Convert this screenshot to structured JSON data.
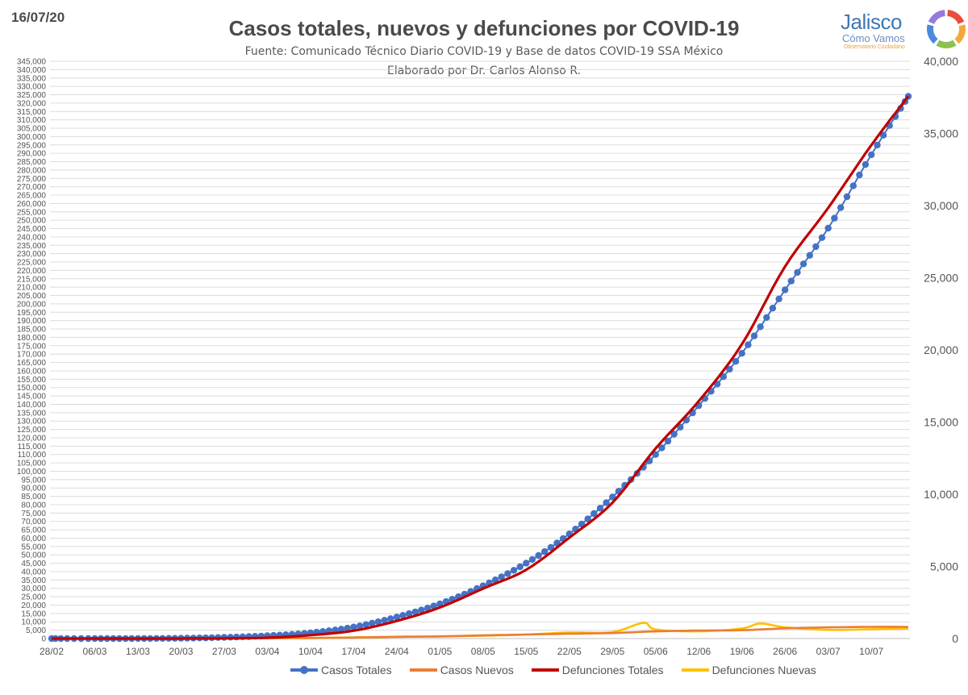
{
  "header": {
    "date": "16/07/20",
    "title": "Casos totales, nuevos y defunciones por COVID-19",
    "source": "Fuente: Comunicado Técnico Diario COVID-19 y Base de datos COVID-19 SSA México",
    "author": "Elaborado por Dr. Carlos Alonso R."
  },
  "logo": {
    "name": "Jalisco",
    "subtitle": "Cómo Vamos",
    "tagline": "Observatorio Ciudadano",
    "colors": [
      "#e94e3c",
      "#f2a93b",
      "#8cc152",
      "#4a89dc",
      "#967adc"
    ]
  },
  "chart_data": {
    "type": "line",
    "title": "Casos totales, nuevos y defunciones por COVID-19",
    "x_tick_labels": [
      "28/02",
      "06/03",
      "13/03",
      "20/03",
      "27/03",
      "03/04",
      "10/04",
      "17/04",
      "24/04",
      "01/05",
      "08/05",
      "15/05",
      "22/05",
      "29/05",
      "05/06",
      "12/06",
      "19/06",
      "26/06",
      "03/07",
      "10/07"
    ],
    "x_range": [
      "28/02",
      "16/07"
    ],
    "y_left": {
      "min": 0,
      "max": 345000,
      "step": 5000
    },
    "y_right": {
      "min": 0,
      "max": 40000,
      "step": 5000
    },
    "grid": true,
    "legend_position": "bottom",
    "series": [
      {
        "name": "Casos Totales",
        "axis": "left",
        "color": "#4472c4",
        "marker": "circle",
        "points": [
          [
            "28/02",
            1
          ],
          [
            "06/03",
            5
          ],
          [
            "13/03",
            26
          ],
          [
            "20/03",
            203
          ],
          [
            "27/03",
            717
          ],
          [
            "03/04",
            1688
          ],
          [
            "10/04",
            3441
          ],
          [
            "17/04",
            6875
          ],
          [
            "24/04",
            12872
          ],
          [
            "01/05",
            20739
          ],
          [
            "08/05",
            31522
          ],
          [
            "15/05",
            45032
          ],
          [
            "22/05",
            62527
          ],
          [
            "29/05",
            84627
          ],
          [
            "05/06",
            110026
          ],
          [
            "12/06",
            139196
          ],
          [
            "19/06",
            170485
          ],
          [
            "26/06",
            208392
          ],
          [
            "03/07",
            245251
          ],
          [
            "10/07",
            289174
          ],
          [
            "16/07",
            324041
          ]
        ]
      },
      {
        "name": "Casos Nuevos",
        "axis": "left",
        "color": "#ed7d31",
        "points": [
          [
            "28/02",
            0
          ],
          [
            "06/03",
            1
          ],
          [
            "13/03",
            10
          ],
          [
            "20/03",
            40
          ],
          [
            "27/03",
            130
          ],
          [
            "03/04",
            180
          ],
          [
            "10/04",
            300
          ],
          [
            "17/04",
            600
          ],
          [
            "24/04",
            1000
          ],
          [
            "01/05",
            1300
          ],
          [
            "08/05",
            1900
          ],
          [
            "15/05",
            2400
          ],
          [
            "22/05",
            2900
          ],
          [
            "29/05",
            3300
          ],
          [
            "05/06",
            4300
          ],
          [
            "12/06",
            4800
          ],
          [
            "19/06",
            5000
          ],
          [
            "26/06",
            6100
          ],
          [
            "03/07",
            6700
          ],
          [
            "10/07",
            7000
          ],
          [
            "16/07",
            7000
          ]
        ]
      },
      {
        "name": "Defunciones Totales",
        "axis": "right",
        "color": "#c00000",
        "points": [
          [
            "28/02",
            0
          ],
          [
            "06/03",
            0
          ],
          [
            "13/03",
            0
          ],
          [
            "20/03",
            2
          ],
          [
            "27/03",
            16
          ],
          [
            "03/04",
            60
          ],
          [
            "10/04",
            233
          ],
          [
            "17/04",
            546
          ],
          [
            "24/04",
            1221
          ],
          [
            "01/05",
            2154
          ],
          [
            "08/05",
            3465
          ],
          [
            "15/05",
            4767
          ],
          [
            "22/05",
            6989
          ],
          [
            "29/05",
            9415
          ],
          [
            "05/06",
            13170
          ],
          [
            "12/06",
            16448
          ],
          [
            "19/06",
            20394
          ],
          [
            "26/06",
            25779
          ],
          [
            "03/07",
            29843
          ],
          [
            "10/07",
            34191
          ],
          [
            "16/07",
            37574
          ]
        ]
      },
      {
        "name": "Defunciones Nuevas",
        "axis": "right",
        "color": "#ffc000",
        "points": [
          [
            "28/02",
            0
          ],
          [
            "06/03",
            0
          ],
          [
            "13/03",
            0
          ],
          [
            "20/03",
            0
          ],
          [
            "27/03",
            4
          ],
          [
            "03/04",
            20
          ],
          [
            "10/04",
            40
          ],
          [
            "17/04",
            80
          ],
          [
            "24/04",
            130
          ],
          [
            "01/05",
            150
          ],
          [
            "08/05",
            200
          ],
          [
            "15/05",
            280
          ],
          [
            "22/05",
            420
          ],
          [
            "29/05",
            450
          ],
          [
            "03/06",
            1092
          ],
          [
            "05/06",
            630
          ],
          [
            "12/06",
            500
          ],
          [
            "19/06",
            700
          ],
          [
            "22/06",
            1044
          ],
          [
            "26/06",
            780
          ],
          [
            "03/07",
            600
          ],
          [
            "10/07",
            650
          ],
          [
            "16/07",
            700
          ]
        ]
      }
    ]
  },
  "legend": [
    {
      "label": "Casos Totales",
      "color": "#4472c4",
      "dot": true
    },
    {
      "label": "Casos Nuevos",
      "color": "#ed7d31",
      "dot": false
    },
    {
      "label": "Defunciones Totales",
      "color": "#c00000",
      "dot": false
    },
    {
      "label": "Defunciones Nuevas",
      "color": "#ffc000",
      "dot": false
    }
  ]
}
